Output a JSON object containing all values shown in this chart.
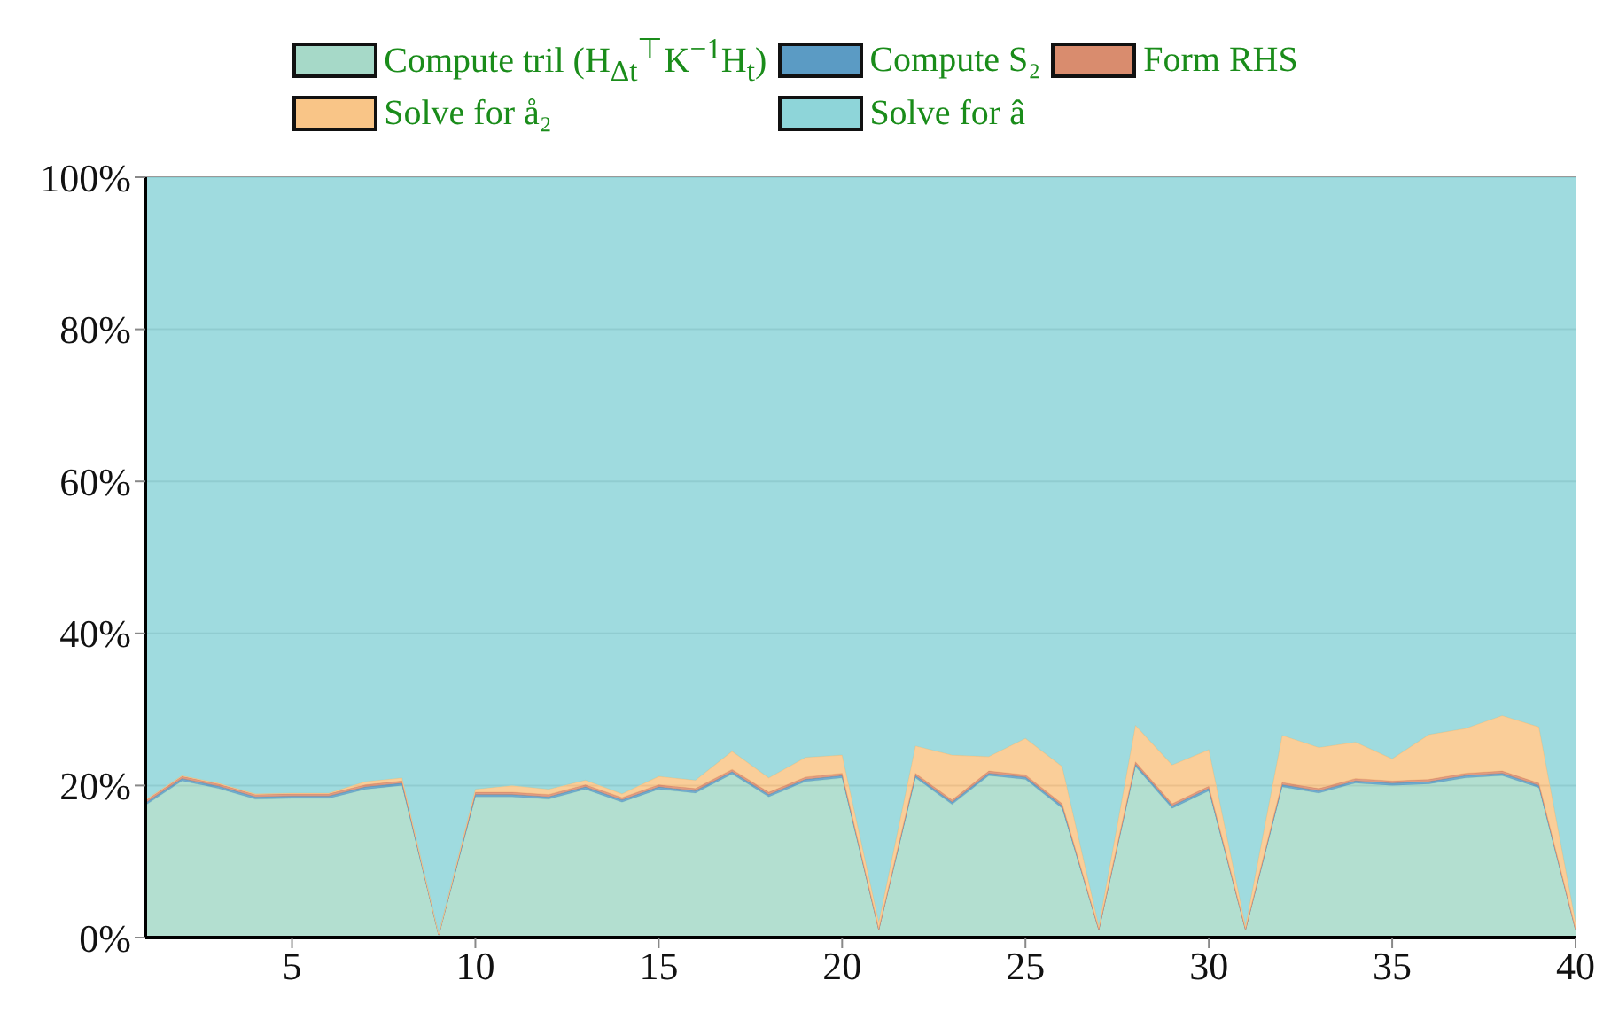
{
  "chart_data": {
    "type": "area",
    "stacked": true,
    "x": [
      1,
      2,
      3,
      4,
      5,
      6,
      7,
      8,
      9,
      10,
      11,
      12,
      13,
      14,
      15,
      16,
      17,
      18,
      19,
      20,
      21,
      22,
      23,
      24,
      25,
      26,
      27,
      28,
      29,
      30,
      31,
      32,
      33,
      34,
      35,
      36,
      37,
      38,
      39,
      40
    ],
    "series": [
      {
        "name": "Compute tril (H$_{Δt}$$^{⊤}$K$^{−1}$H$_{t}$)",
        "color": "#a6d9c8",
        "values": [
          17.4,
          20.6,
          19.6,
          18.2,
          18.3,
          18.3,
          19.5,
          20,
          0.3,
          18.5,
          18.5,
          18.2,
          19.5,
          17.8,
          19.5,
          19,
          21.5,
          18.5,
          20.5,
          21,
          1,
          21,
          17.5,
          21.3,
          20.8,
          17,
          1,
          22.5,
          17,
          19.3,
          1,
          19.8,
          19,
          20.3,
          20,
          20.2,
          21,
          21.3,
          19.7,
          1
        ]
      },
      {
        "name": "Compute S₂",
        "color": "#5b9bc4",
        "values": [
          0.3,
          0.3,
          0.3,
          0.3,
          0.3,
          0.3,
          0.3,
          0.3,
          0.1,
          0.3,
          0.3,
          0.3,
          0.3,
          0.3,
          0.3,
          0.3,
          0.3,
          0.3,
          0.3,
          0.3,
          0.1,
          0.3,
          0.3,
          0.3,
          0.3,
          0.3,
          0.1,
          0.3,
          0.3,
          0.3,
          0.1,
          0.3,
          0.3,
          0.3,
          0.3,
          0.3,
          0.3,
          0.3,
          0.3,
          0.1
        ]
      },
      {
        "name": "Form RHS",
        "color": "#d98c6e",
        "values": [
          0.3,
          0.3,
          0.3,
          0.3,
          0.3,
          0.3,
          0.3,
          0.3,
          0,
          0.3,
          0.3,
          0.3,
          0.3,
          0.3,
          0.3,
          0.3,
          0.3,
          0.3,
          0.3,
          0.3,
          0,
          0.3,
          0.3,
          0.3,
          0.3,
          0.3,
          0,
          0.3,
          0.3,
          0.3,
          0,
          0.3,
          0.3,
          0.3,
          0.3,
          0.3,
          0.3,
          0.3,
          0.3,
          0
        ]
      },
      {
        "name": "Solve for å₂",
        "color": "#f9c587",
        "values": [
          0.1,
          0.1,
          0.1,
          0.1,
          0.1,
          0.1,
          0.4,
          0.4,
          0.1,
          0.4,
          0.9,
          0.7,
          0.6,
          0.5,
          1.1,
          1.1,
          2.4,
          1.9,
          2.6,
          2.4,
          0.9,
          3.6,
          5.9,
          1.9,
          4.8,
          4.9,
          0.4,
          4.8,
          5.1,
          4.8,
          0.4,
          6.2,
          5.4,
          4.8,
          2.9,
          5.9,
          5.9,
          7.3,
          7.4,
          0.9
        ]
      },
      {
        "name": "Solve for â",
        "color": "#8ed5d9",
        "values": [
          81.9,
          78.7,
          79.7,
          81.1,
          81,
          81,
          79.5,
          79,
          99.5,
          80.5,
          80,
          80.5,
          79.3,
          81.1,
          78.8,
          79.3,
          75.5,
          79,
          76.3,
          76,
          98,
          74.8,
          76,
          76.2,
          73.8,
          77.5,
          98.5,
          72.1,
          77.3,
          75.3,
          98.5,
          73.4,
          75,
          74.3,
          76.5,
          73.3,
          72.5,
          70.8,
          72.3,
          98
        ]
      }
    ],
    "xlim": [
      1,
      40
    ],
    "xticks": [
      5,
      10,
      15,
      20,
      25,
      30,
      35,
      40
    ],
    "ylim": [
      0,
      100
    ],
    "yticks": [
      {
        "value": 0,
        "label": "0%"
      },
      {
        "value": 20,
        "label": "20%"
      },
      {
        "value": 40,
        "label": "40%"
      },
      {
        "value": 60,
        "label": "60%"
      },
      {
        "value": 80,
        "label": "80%"
      },
      {
        "value": 100,
        "label": "100%"
      }
    ],
    "grid": "y",
    "legend": "top"
  }
}
